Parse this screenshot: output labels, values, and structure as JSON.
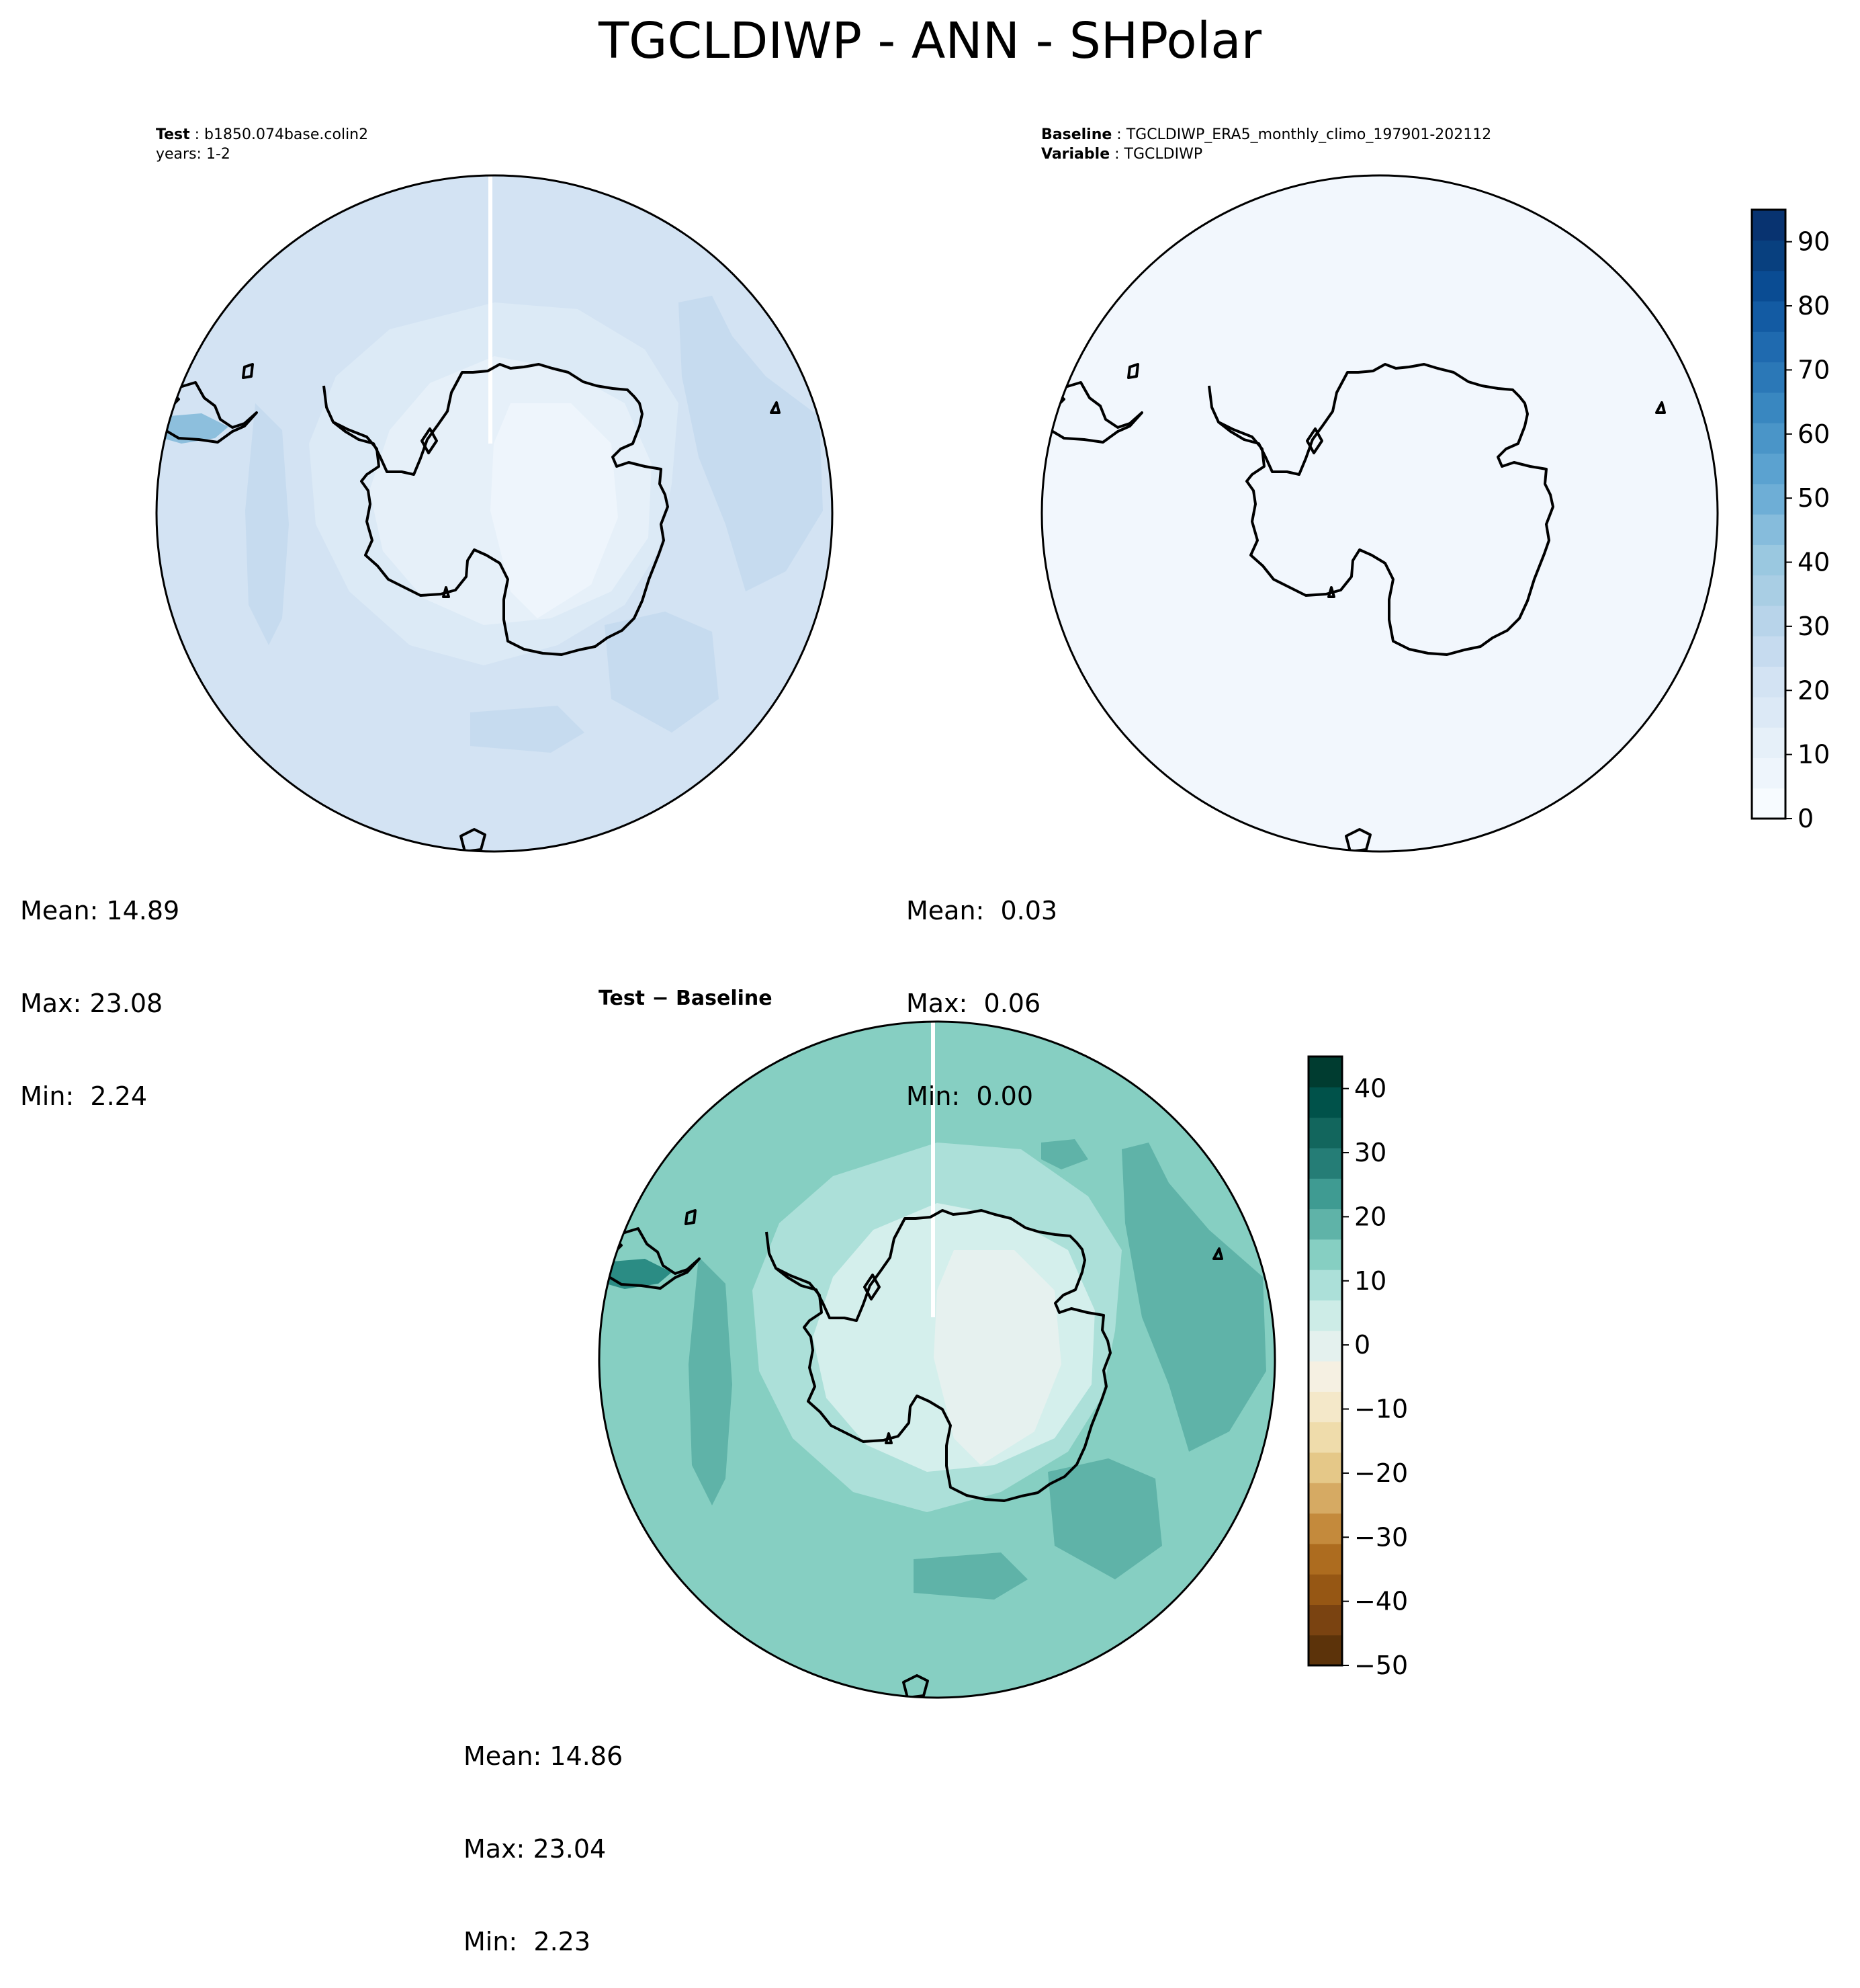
{
  "figure": {
    "title": "TGCLDIWP - ANN - SHPolar"
  },
  "panels": {
    "test": {
      "label_key": "Test",
      "label_val": "b1850.074base.colin2",
      "line2": "years: 1-2",
      "mean": "Mean: 14.89",
      "max": "Max: 23.08",
      "min": "Min:  2.24"
    },
    "baseline": {
      "label_key": "Baseline",
      "label_val": "TGCLDIWP_ERA5_monthly_climo_197901-202112",
      "label2_key": "Variable",
      "label2_val": "TGCLDIWP",
      "mean": "Mean:  0.03",
      "max": "Max:  0.06",
      "min": "Min:  0.00"
    },
    "diff": {
      "title": "Test − Baseline",
      "mean": "Mean: 14.86",
      "max": "Max: 23.04",
      "min": "Min:  2.23"
    }
  },
  "colors": {
    "test_fill_main": "#d3e3f3",
    "test_fill_mid": "#dceaf6",
    "test_fill_inner": "#e6f0f9",
    "test_fill_core": "#eef5fc",
    "test_fill_high": "#c6dbef",
    "test_fill_edge": "#8dbfdd",
    "baseline_fill": "#f2f7fd",
    "diff_fill_main": "#86cfc2",
    "diff_fill_mid": "#ace0d9",
    "diff_fill_inner": "#d4efec",
    "diff_fill_core": "#e6f1ef",
    "diff_fill_high": "#5fb3a8",
    "diff_fill_dark": "#2b8c84"
  },
  "chart_data": [
    {
      "type": "heatmap",
      "panel": "Test",
      "projection": "south polar stereographic",
      "colorbar_ticks": [
        "0",
        "10",
        "20",
        "30",
        "40",
        "50",
        "60",
        "70",
        "80",
        "90"
      ],
      "stats": {
        "mean": 14.89,
        "max": 23.08,
        "min": 2.24
      }
    },
    {
      "type": "heatmap",
      "panel": "Baseline",
      "projection": "south polar stereographic",
      "colorbar": {
        "range": [
          0,
          95
        ],
        "ticks": [
          "0",
          "10",
          "20",
          "30",
          "40",
          "50",
          "60",
          "70",
          "80",
          "90"
        ],
        "colors": [
          "#f7fbff",
          "#eef5fc",
          "#e6f0f9",
          "#dce9f6",
          "#d3e3f3",
          "#c6dbef",
          "#b8d4ea",
          "#a9cee4",
          "#9ac8e0",
          "#86bcdc",
          "#6eaed6",
          "#5ba2d0",
          "#4a95c8",
          "#3987c0",
          "#2b78b7",
          "#1f6aaf",
          "#135ba3",
          "#0a4c93",
          "#08407f",
          "#083370"
        ]
      },
      "stats": {
        "mean": 0.03,
        "max": 0.06,
        "min": 0.0
      }
    },
    {
      "type": "heatmap",
      "panel": "Test − Baseline",
      "projection": "south polar stereographic",
      "colorbar": {
        "range": [
          -50,
          45
        ],
        "ticks": [
          "−50",
          "−40",
          "−30",
          "−20",
          "−10",
          "0",
          "10",
          "20",
          "30",
          "40"
        ],
        "colors": [
          "#5c330a",
          "#7a4311",
          "#965714",
          "#ad6c1f",
          "#c48a3c",
          "#d6aa63",
          "#e5c888",
          "#efdcab",
          "#f4e8c9",
          "#f5f0e2",
          "#e4f1ee",
          "#cdece7",
          "#ace0d9",
          "#86cfc2",
          "#5fb3a8",
          "#3f9b92",
          "#257d76",
          "#12665d",
          "#00524a",
          "#003c30"
        ]
      },
      "stats": {
        "mean": 14.86,
        "max": 23.04,
        "min": 2.23
      }
    }
  ]
}
